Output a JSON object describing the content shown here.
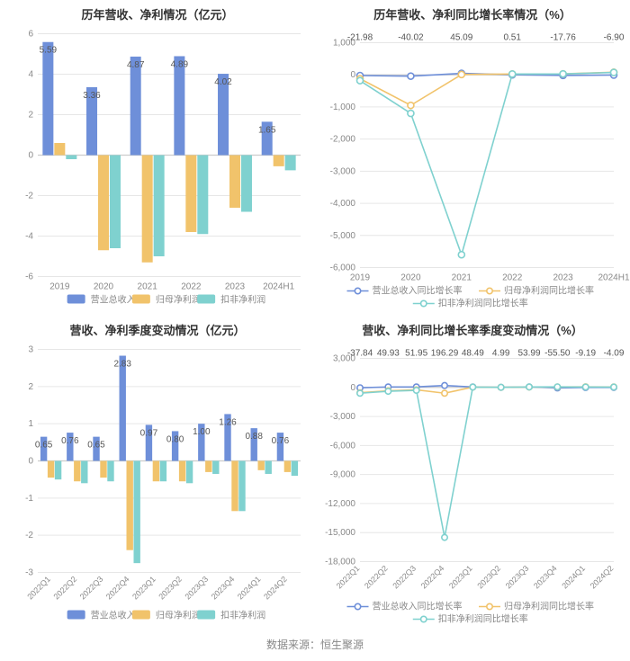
{
  "source_label": "数据来源：恒生聚源",
  "colors": {
    "blue": "#6e8fd9",
    "yellow": "#f1c36b",
    "teal": "#7fd1cf",
    "grid": "#e6e6e6",
    "axis": "#cccccc",
    "text": "#888888",
    "title": "#333333",
    "bg": "#ffffff"
  },
  "panels": {
    "tl": {
      "title": "历年营收、净利情况（亿元）",
      "type": "bar",
      "categories": [
        "2019",
        "2020",
        "2021",
        "2022",
        "2023",
        "2024H1"
      ],
      "ylim": [
        -6,
        6
      ],
      "ytick_step": 2,
      "series": [
        {
          "name": "营业总收入",
          "color_key": "blue",
          "values": [
            5.59,
            3.36,
            4.87,
            4.89,
            4.02,
            1.65
          ]
        },
        {
          "name": "归母净利润",
          "color_key": "yellow",
          "values": [
            0.6,
            -4.7,
            -5.3,
            -3.8,
            -2.6,
            -0.55
          ]
        },
        {
          "name": "扣非净利润",
          "color_key": "teal",
          "values": [
            -0.2,
            -4.6,
            -5.0,
            -3.9,
            -2.8,
            -0.75
          ]
        }
      ],
      "legend": [
        "营业总收入",
        "归母净利润",
        "扣非净利润"
      ],
      "value_labels_series_index": 0,
      "bar_group_width": 0.78,
      "bar_gap": 0.02,
      "label_fontsize": 10,
      "title_fontsize": 13
    },
    "tr": {
      "title": "历年营收、净利同比增长率情况（%）",
      "type": "line",
      "categories": [
        "2019",
        "2020",
        "2021",
        "2022",
        "2023",
        "2024H1"
      ],
      "ylim": [
        -6000,
        1000
      ],
      "ytick_step": 1000,
      "series": [
        {
          "name": "营业总收入同比增长率",
          "color_key": "blue",
          "values": [
            -21.98,
            -40.02,
            45.09,
            0.51,
            -17.76,
            -6.9
          ]
        },
        {
          "name": "归母净利润同比增长率",
          "color_key": "yellow",
          "values": [
            -120,
            -950,
            10,
            25,
            30,
            80
          ]
        },
        {
          "name": "扣非净利润同比增长率",
          "color_key": "teal",
          "values": [
            -180,
            -1200,
            -5600,
            25,
            30,
            75
          ]
        }
      ],
      "top_labels_series_index": 0,
      "legend": [
        "营业总收入同比增长率",
        "归母净利润同比增长率",
        "扣非净利润同比增长率"
      ],
      "marker": "hollow-circle",
      "marker_radius": 3.5,
      "line_width": 1.6,
      "label_fontsize": 10,
      "title_fontsize": 13
    },
    "bl": {
      "title": "营收、净利季度变动情况（亿元）",
      "type": "bar",
      "categories": [
        "2022Q1",
        "2022Q2",
        "2022Q3",
        "2022Q4",
        "2023Q1",
        "2023Q2",
        "2023Q3",
        "2023Q4",
        "2024Q1",
        "2024Q2"
      ],
      "ylim": [
        -3,
        3
      ],
      "ytick_step": 1,
      "x_label_rotate": -45,
      "series": [
        {
          "name": "营业总收入",
          "color_key": "blue",
          "values": [
            0.65,
            0.76,
            0.65,
            2.83,
            0.97,
            0.8,
            1.0,
            1.26,
            0.88,
            0.76
          ]
        },
        {
          "name": "归母净利润",
          "color_key": "yellow",
          "values": [
            -0.45,
            -0.55,
            -0.45,
            -2.4,
            -0.55,
            -0.55,
            -0.3,
            -1.35,
            -0.25,
            -0.3
          ]
        },
        {
          "name": "扣非净利润",
          "color_key": "teal",
          "values": [
            -0.5,
            -0.6,
            -0.55,
            -2.75,
            -0.55,
            -0.6,
            -0.35,
            -1.35,
            -0.35,
            -0.4
          ]
        }
      ],
      "legend": [
        "营业总收入",
        "归母净利润",
        "扣非净利润"
      ],
      "value_labels_series_index": 0,
      "bar_group_width": 0.8,
      "bar_gap": 0.02,
      "label_fontsize": 10,
      "title_fontsize": 13
    },
    "br": {
      "title": "营收、净利同比增长率季度变动情况（%）",
      "type": "line",
      "categories": [
        "2022Q1",
        "2022Q2",
        "2022Q3",
        "2022Q4",
        "2023Q1",
        "2023Q2",
        "2023Q3",
        "2023Q4",
        "2024Q1",
        "2024Q2"
      ],
      "ylim": [
        -18000,
        3000
      ],
      "ytick_step": 3000,
      "x_label_rotate": -45,
      "series": [
        {
          "name": "营业总收入同比增长率",
          "color_key": "blue",
          "values": [
            -37.84,
            49.93,
            51.95,
            196.29,
            48.49,
            4.99,
            53.99,
            -55.5,
            -9.19,
            -4.09
          ]
        },
        {
          "name": "归母净利润同比增长率",
          "color_key": "yellow",
          "values": [
            -550,
            -350,
            -250,
            -600,
            30,
            5,
            40,
            45,
            60,
            50
          ]
        },
        {
          "name": "扣非净利润同比增长率",
          "color_key": "teal",
          "values": [
            -600,
            -400,
            -300,
            -15500,
            35,
            10,
            45,
            55,
            40,
            35
          ]
        }
      ],
      "top_labels_series_index": 0,
      "legend": [
        "营业总收入同比增长率",
        "归母净利润同比增长率",
        "扣非净利润同比增长率"
      ],
      "marker": "hollow-circle",
      "marker_radius": 3.2,
      "line_width": 1.6,
      "label_fontsize": 9,
      "title_fontsize": 13
    }
  }
}
